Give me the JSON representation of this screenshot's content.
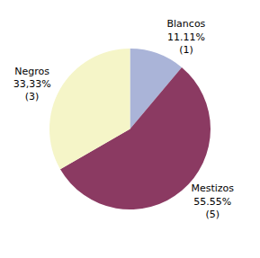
{
  "chart_data": {
    "type": "pie",
    "categories": [
      "Blancos",
      "Mestizos",
      "Negros"
    ],
    "values": [
      11.11,
      55.55,
      33.33
    ],
    "value_labels": [
      "11.11%",
      "55.55%",
      "33,33%"
    ],
    "counts": [
      1,
      5,
      3
    ],
    "count_labels": [
      "(1)",
      "(5)",
      "(3)"
    ],
    "colors": [
      "#aab4d8",
      "#8b3a62",
      "#f5f5c8"
    ],
    "data_labels": true
  }
}
